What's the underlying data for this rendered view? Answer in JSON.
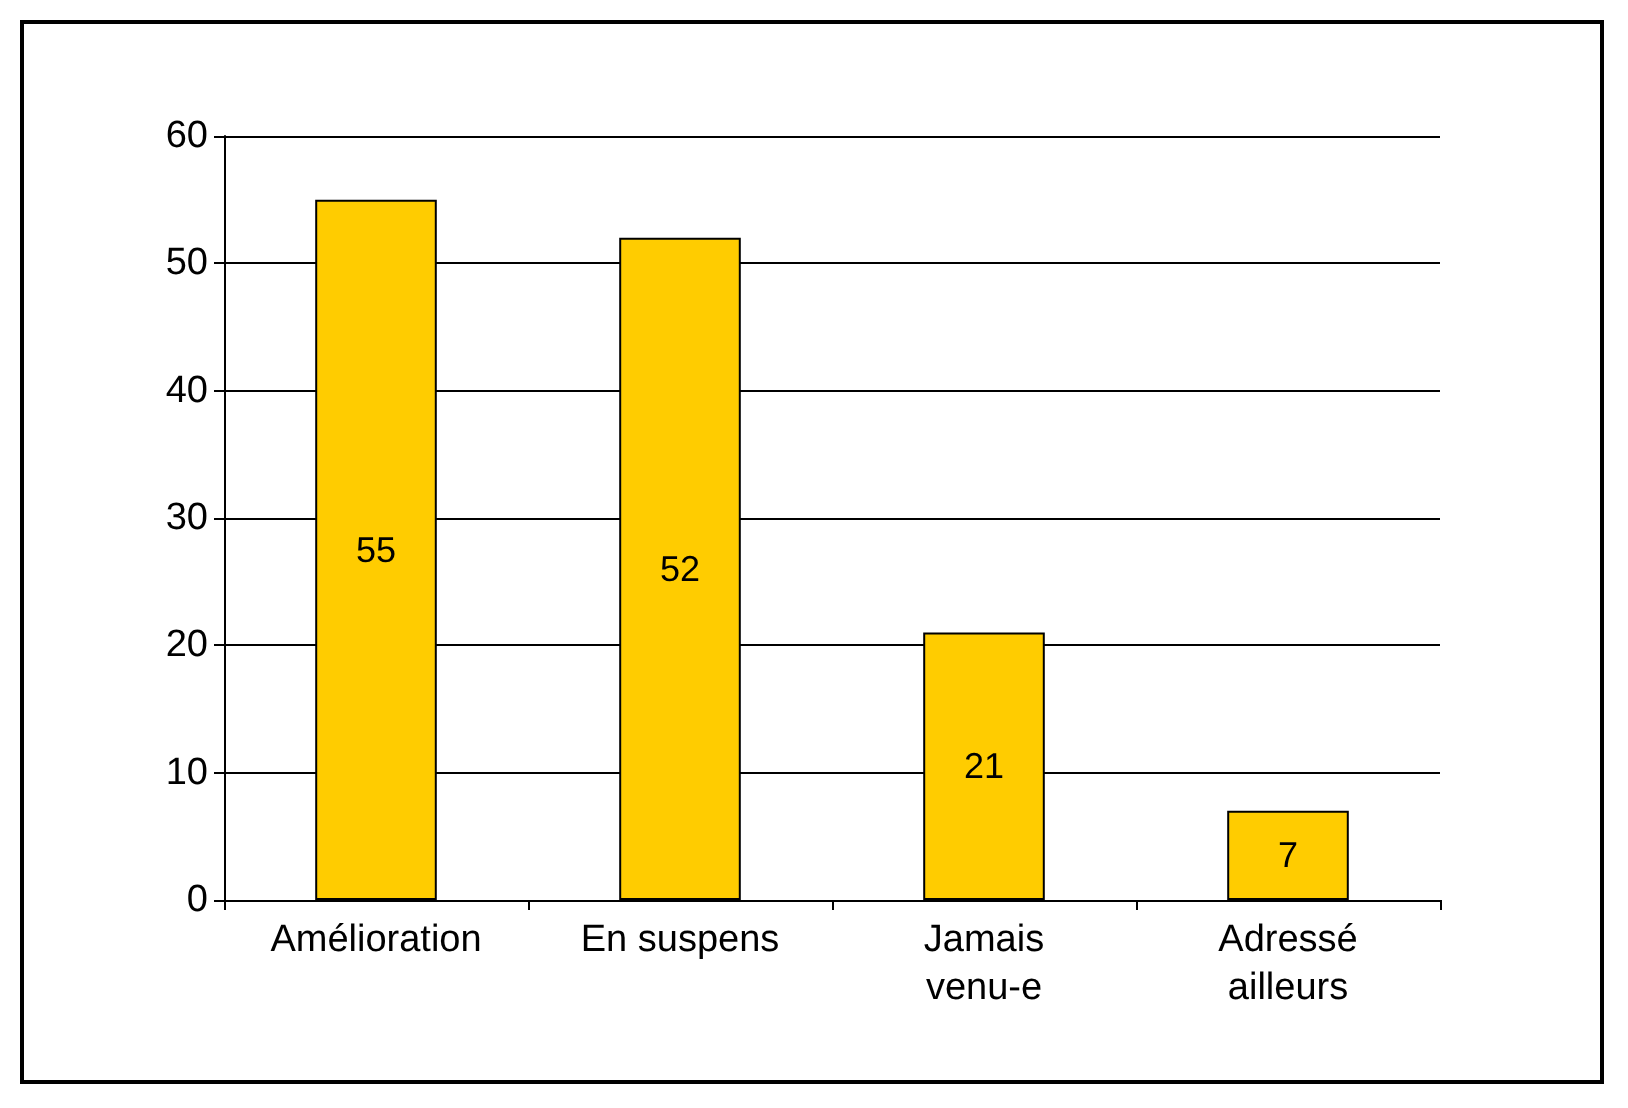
{
  "chart_data": {
    "type": "bar",
    "categories": [
      "Amélioration",
      "En suspens",
      "Jamais\nvenu-e",
      "Adressé\nailleurs"
    ],
    "values": [
      55,
      52,
      21,
      7
    ],
    "color": "#ffcc00",
    "ylim": [
      0,
      60
    ],
    "yticks": [
      0,
      10,
      20,
      30,
      40,
      50,
      60
    ],
    "grid": "y",
    "data_labels": true
  }
}
